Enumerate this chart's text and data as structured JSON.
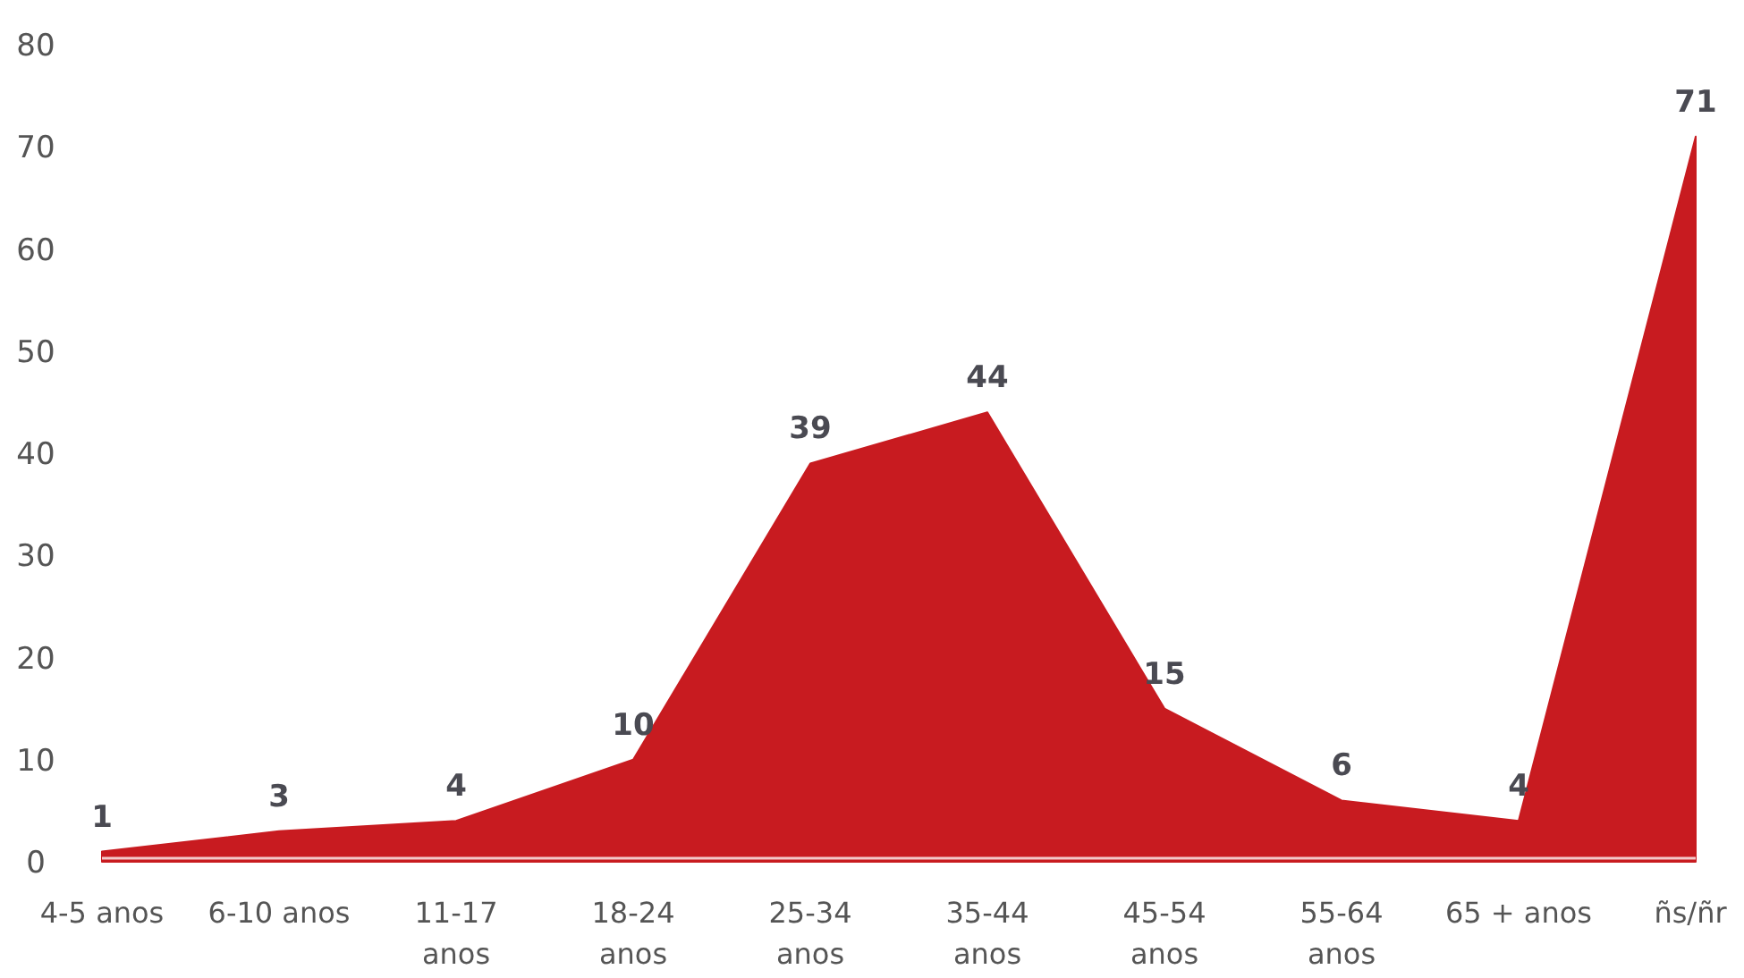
{
  "chart_data": {
    "type": "area",
    "categories": [
      "4-5 anos",
      "6-10 anos",
      "11-17 anos",
      "18-24 anos",
      "25-34 anos",
      "35-44 anos",
      "45-54 anos",
      "55-64 anos",
      "65 + anos",
      "ñs/ñr"
    ],
    "series": [
      {
        "color": "#c81b20",
        "values": [
          1,
          3,
          4,
          10,
          39,
          44,
          15,
          6,
          4,
          71
        ]
      }
    ],
    "ylim": [
      0,
      80
    ],
    "yticks": [
      0,
      10,
      20,
      30,
      40,
      50,
      60,
      70,
      80
    ],
    "grid": false,
    "data_labels": true
  }
}
